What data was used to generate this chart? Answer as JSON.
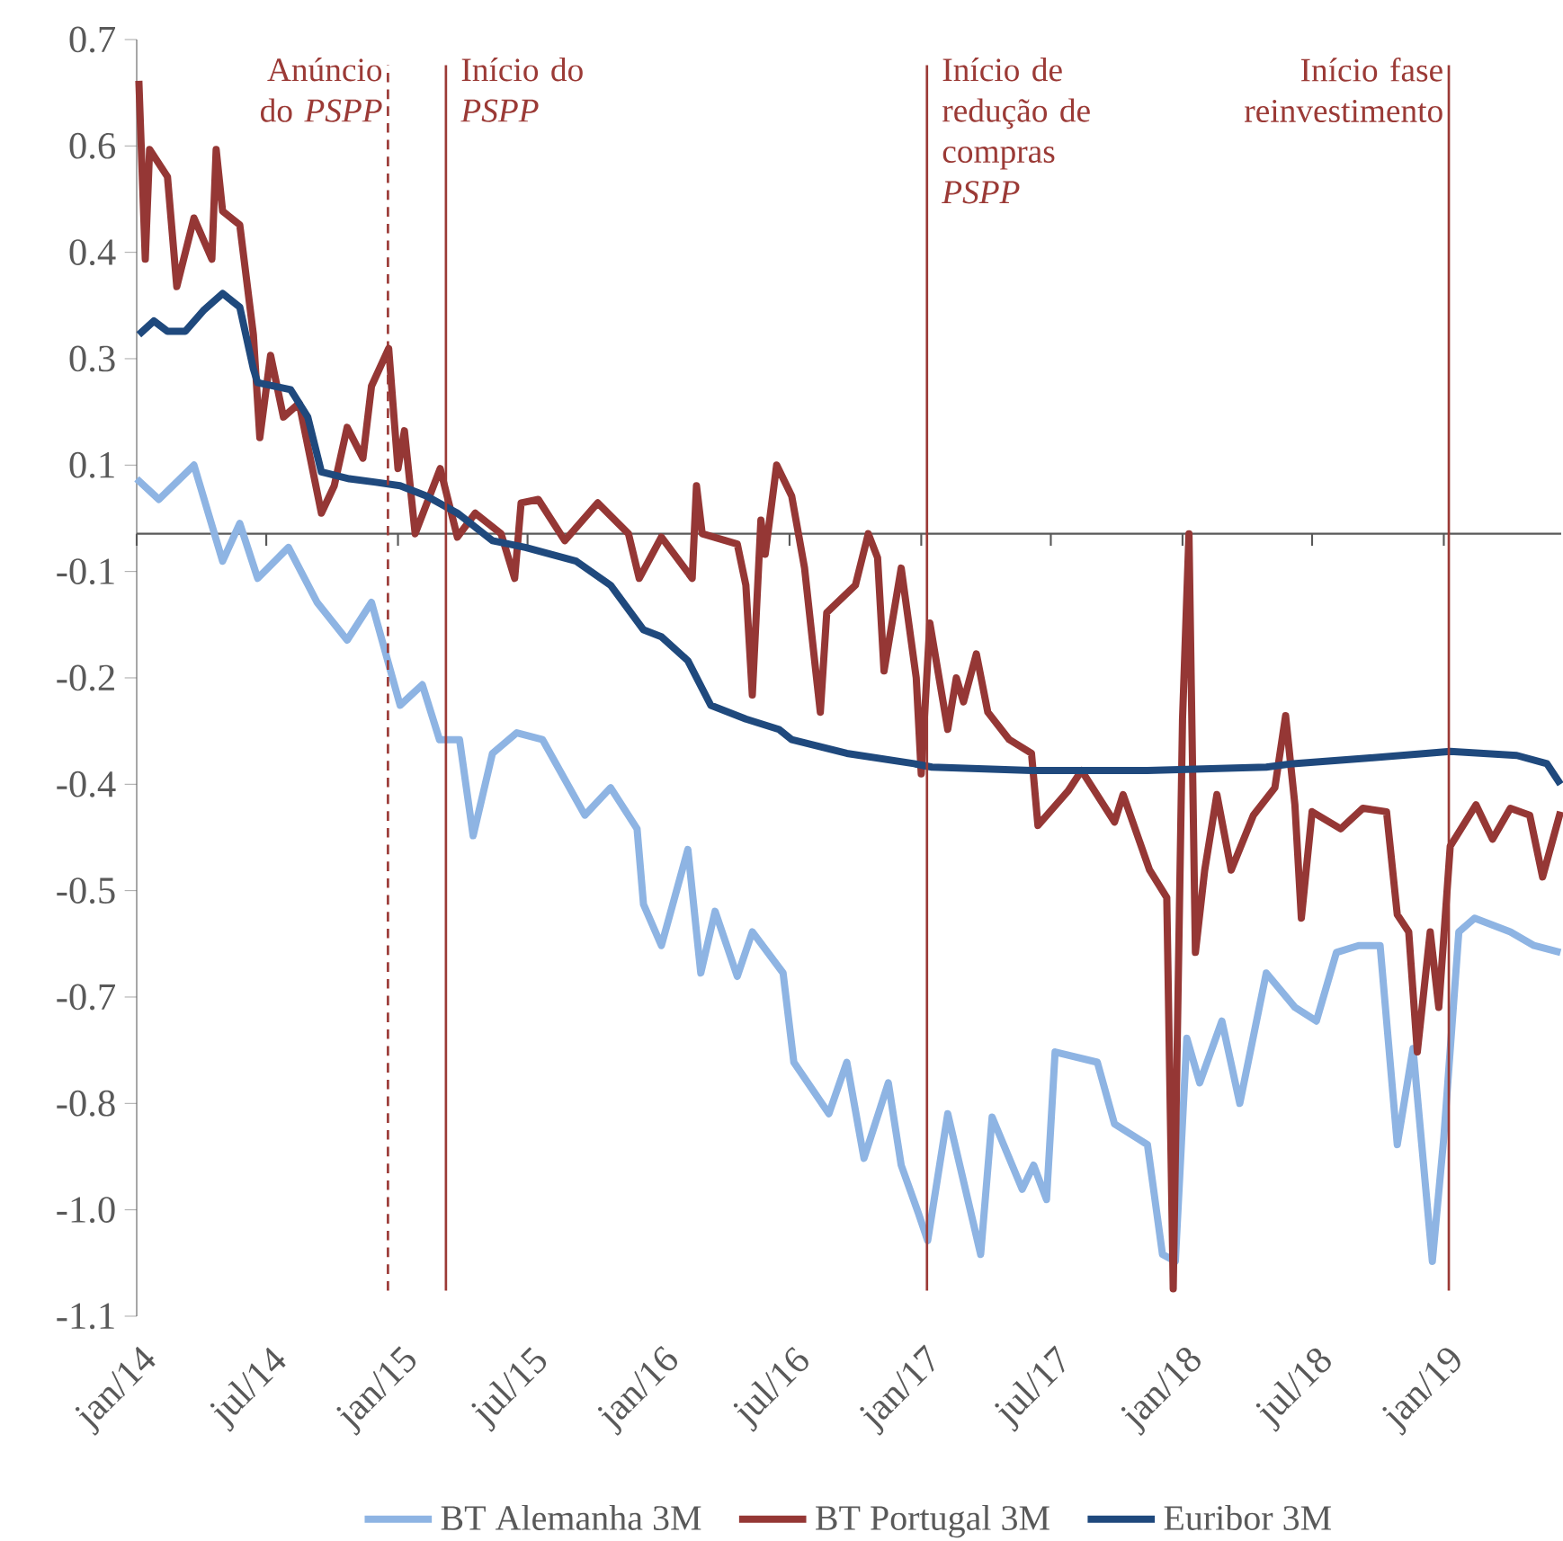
{
  "chart_data": {
    "type": "line",
    "xlim": [
      "2014-01-01",
      "2019-06-14"
    ],
    "xticks": [
      {
        "value": "2014-01-01",
        "label": "jan/14"
      },
      {
        "value": "2014-07-01",
        "label": "jul/14"
      },
      {
        "value": "2015-01-01",
        "label": "jan/15"
      },
      {
        "value": "2015-07-01",
        "label": "jul/15"
      },
      {
        "value": "2016-01-01",
        "label": "jan/16"
      },
      {
        "value": "2016-07-01",
        "label": "jul/16"
      },
      {
        "value": "2017-01-01",
        "label": "jan/17"
      },
      {
        "value": "2017-07-01",
        "label": "jul/17"
      },
      {
        "value": "2018-01-01",
        "label": "jan/18"
      },
      {
        "value": "2018-07-01",
        "label": "jul/18"
      },
      {
        "value": "2019-01-01",
        "label": "jan/19"
      }
    ],
    "ylim": [
      -1.14,
      0.72
    ],
    "yticks": [
      {
        "value": 0.72,
        "label": "0.7"
      },
      {
        "value": 0.565,
        "label": "0.6"
      },
      {
        "value": 0.41,
        "label": "0.4"
      },
      {
        "value": 0.255,
        "label": "0.3"
      },
      {
        "value": 0.1,
        "label": "0.1"
      },
      {
        "value": -0.055,
        "label": "-0.1"
      },
      {
        "value": -0.21,
        "label": "-0.2"
      },
      {
        "value": -0.365,
        "label": "-0.4"
      },
      {
        "value": -0.52,
        "label": "-0.5"
      },
      {
        "value": -0.675,
        "label": "-0.7"
      },
      {
        "value": -0.83,
        "label": "-0.8"
      },
      {
        "value": -0.985,
        "label": "-1.0"
      },
      {
        "value": -1.14,
        "label": "-1.1"
      }
    ],
    "legend": "bottom",
    "ref_lines": [
      {
        "axis": "x",
        "value": "2014-12-18",
        "label": "Anúncio do *PSPP*",
        "color": "#9b3a36",
        "line_style": "dashed"
      },
      {
        "axis": "x",
        "value": "2015-03-09",
        "label": "Início do *PSPP*",
        "color": "#9b3a36",
        "line_style": "solid"
      },
      {
        "axis": "x",
        "value": "2017-01-09",
        "label": "Início de redução de compras *PSPP*",
        "color": "#9b3a36",
        "line_style": "solid"
      },
      {
        "axis": "x",
        "value": "2019-01-08",
        "label": "Início fase reinvestimento",
        "color": "#9b3a36",
        "line_style": "solid"
      }
    ],
    "series": [
      {
        "name": "BT Alemanha 3M",
        "color": "#8eb4e3",
        "x": [
          "2014-01-01",
          "2014-02-01",
          "2014-03-22",
          "2014-05-01",
          "2014-05-25",
          "2014-06-19",
          "2014-08-01",
          "2014-09-10",
          "2014-10-22",
          "2014-11-25",
          "2015-01-04",
          "2015-02-04",
          "2015-02-28",
          "2015-03-28",
          "2015-04-16",
          "2015-05-13",
          "2015-06-16",
          "2015-07-22",
          "2015-09-19",
          "2015-10-25",
          "2015-12-01",
          "2015-12-10",
          "2016-01-04",
          "2016-02-10",
          "2016-02-28",
          "2016-03-19",
          "2016-04-19",
          "2016-05-10",
          "2016-06-22",
          "2016-07-07",
          "2016-08-25",
          "2016-09-19",
          "2016-10-13",
          "2016-11-16",
          "2016-12-04",
          "2016-12-28",
          "2017-01-10",
          "2017-02-07",
          "2017-03-25",
          "2017-04-10",
          "2017-05-22",
          "2017-06-07",
          "2017-06-25",
          "2017-07-07",
          "2017-09-04",
          "2017-09-28",
          "2017-11-13",
          "2017-12-04",
          "2017-12-22",
          "2018-01-07",
          "2018-01-25",
          "2018-02-25",
          "2018-03-22",
          "2018-04-28",
          "2018-06-07",
          "2018-07-07",
          "2018-08-04",
          "2018-09-04",
          "2018-10-04",
          "2018-10-28",
          "2018-11-19",
          "2018-12-16",
          "2019-01-01",
          "2019-01-22",
          "2019-02-13",
          "2019-04-04",
          "2019-05-07",
          "2019-06-13"
        ],
        "values": [
          0.08,
          0.05,
          0.1,
          -0.04,
          0.015,
          -0.065,
          -0.02,
          -0.1,
          -0.155,
          -0.1,
          -0.25,
          -0.22,
          -0.3,
          -0.3,
          -0.44,
          -0.32,
          -0.29,
          -0.3,
          -0.41,
          -0.37,
          -0.43,
          -0.54,
          -0.6,
          -0.46,
          -0.64,
          -0.55,
          -0.645,
          -0.58,
          -0.64,
          -0.77,
          -0.845,
          -0.77,
          -0.91,
          -0.8,
          -0.92,
          -0.99,
          -1.03,
          -0.845,
          -1.05,
          -0.85,
          -0.955,
          -0.92,
          -0.97,
          -0.755,
          -0.77,
          -0.86,
          -0.89,
          -1.05,
          -1.06,
          -0.735,
          -0.8,
          -0.71,
          -0.83,
          -0.64,
          -0.69,
          -0.71,
          -0.61,
          -0.6,
          -0.6,
          -0.89,
          -0.75,
          -1.06,
          -0.88,
          -0.58,
          -0.56,
          -0.58,
          -0.6,
          -0.61
        ]
      },
      {
        "name": "BT Portugal 3M",
        "color": "#953735",
        "x": [
          "2014-01-04",
          "2014-01-13",
          "2014-01-19",
          "2014-02-13",
          "2014-02-26",
          "2014-03-22",
          "2014-04-16",
          "2014-04-22",
          "2014-05-01",
          "2014-05-25",
          "2014-06-13",
          "2014-06-22",
          "2014-07-07",
          "2014-07-25",
          "2014-08-16",
          "2014-09-16",
          "2014-10-04",
          "2014-10-22",
          "2014-11-13",
          "2014-11-25",
          "2014-12-19",
          "2015-01-01",
          "2015-01-10",
          "2015-01-25",
          "2015-03-01",
          "2015-03-25",
          "2015-04-19",
          "2015-05-25",
          "2015-06-13",
          "2015-06-22",
          "2015-07-16",
          "2015-08-22",
          "2015-10-07",
          "2015-11-19",
          "2015-12-04",
          "2016-01-04",
          "2016-02-16",
          "2016-02-22",
          "2016-03-01",
          "2016-04-19",
          "2016-05-01",
          "2016-05-10",
          "2016-05-22",
          "2016-05-28",
          "2016-06-13",
          "2016-07-04",
          "2016-07-22",
          "2016-08-04",
          "2016-08-13",
          "2016-08-22",
          "2016-10-01",
          "2016-10-19",
          "2016-11-01",
          "2016-11-10",
          "2016-12-04",
          "2016-12-25",
          "2017-01-01",
          "2017-01-13",
          "2017-02-07",
          "2017-02-19",
          "2017-03-01",
          "2017-03-19",
          "2017-04-04",
          "2017-05-04",
          "2017-06-04",
          "2017-06-13",
          "2017-07-25",
          "2017-08-13",
          "2017-09-28",
          "2017-10-10",
          "2017-11-16",
          "2017-12-10",
          "2017-12-19",
          "2018-01-01",
          "2018-01-10",
          "2018-01-19",
          "2018-02-01",
          "2018-02-18",
          "2018-03-10",
          "2018-04-10",
          "2018-05-10",
          "2018-05-25",
          "2018-06-07",
          "2018-06-16",
          "2018-07-01",
          "2018-08-10",
          "2018-09-10",
          "2018-10-13",
          "2018-10-28",
          "2018-11-13",
          "2018-11-25",
          "2018-12-13",
          "2018-12-25",
          "2019-01-10",
          "2019-02-15",
          "2019-03-10",
          "2019-04-04",
          "2019-05-01",
          "2019-05-19",
          "2019-06-13"
        ],
        "values": [
          0.66,
          0.4,
          0.56,
          0.52,
          0.36,
          0.46,
          0.4,
          0.56,
          0.47,
          0.45,
          0.29,
          0.14,
          0.26,
          0.17,
          0.19,
          0.03,
          0.07,
          0.155,
          0.11,
          0.215,
          0.27,
          0.095,
          0.15,
          0.0,
          0.095,
          -0.005,
          0.03,
          0.0,
          -0.065,
          0.045,
          0.05,
          -0.01,
          0.045,
          0.0,
          -0.065,
          -0.005,
          -0.065,
          0.07,
          0.0,
          -0.015,
          -0.075,
          -0.235,
          0.02,
          -0.03,
          0.1,
          0.055,
          -0.05,
          -0.175,
          -0.26,
          -0.115,
          -0.075,
          0.0,
          -0.035,
          -0.2,
          -0.05,
          -0.21,
          -0.35,
          -0.13,
          -0.285,
          -0.21,
          -0.245,
          -0.175,
          -0.26,
          -0.3,
          -0.32,
          -0.425,
          -0.375,
          -0.345,
          -0.42,
          -0.38,
          -0.49,
          -0.53,
          -1.1,
          -0.27,
          0.0,
          -0.61,
          -0.49,
          -0.38,
          -0.49,
          -0.41,
          -0.37,
          -0.265,
          -0.395,
          -0.56,
          -0.405,
          -0.43,
          -0.4,
          -0.405,
          -0.555,
          -0.58,
          -0.755,
          -0.58,
          -0.69,
          -0.455,
          -0.395,
          -0.445,
          -0.4,
          -0.41,
          -0.5,
          -0.405
        ]
      },
      {
        "name": "Euribor 3M",
        "color": "#1f497d",
        "x": [
          "2014-01-04",
          "2014-01-25",
          "2014-02-13",
          "2014-03-10",
          "2014-04-04",
          "2014-05-01",
          "2014-05-25",
          "2014-06-13",
          "2014-06-19",
          "2014-08-04",
          "2014-08-28",
          "2014-09-16",
          "2014-10-25",
          "2014-12-01",
          "2015-01-04",
          "2015-02-10",
          "2015-03-25",
          "2015-05-13",
          "2015-06-28",
          "2015-09-07",
          "2015-10-25",
          "2015-12-10",
          "2016-01-04",
          "2016-02-10",
          "2016-03-13",
          "2016-05-01",
          "2016-06-16",
          "2016-07-04",
          "2016-09-19",
          "2016-12-22",
          "2017-01-16",
          "2017-06-04",
          "2017-11-13",
          "2018-04-28",
          "2018-06-04",
          "2018-09-16",
          "2018-12-07",
          "2019-01-10",
          "2019-04-13",
          "2019-05-25",
          "2019-06-13"
        ],
        "values": [
          0.29,
          0.31,
          0.295,
          0.295,
          0.325,
          0.35,
          0.33,
          0.24,
          0.22,
          0.21,
          0.17,
          0.09,
          0.08,
          0.075,
          0.07,
          0.055,
          0.03,
          -0.01,
          -0.02,
          -0.04,
          -0.075,
          -0.14,
          -0.15,
          -0.185,
          -0.25,
          -0.27,
          -0.285,
          -0.3,
          -0.32,
          -0.335,
          -0.34,
          -0.345,
          -0.345,
          -0.34,
          -0.335,
          -0.327,
          -0.32,
          -0.317,
          -0.323,
          -0.335,
          -0.365
        ]
      }
    ]
  }
}
